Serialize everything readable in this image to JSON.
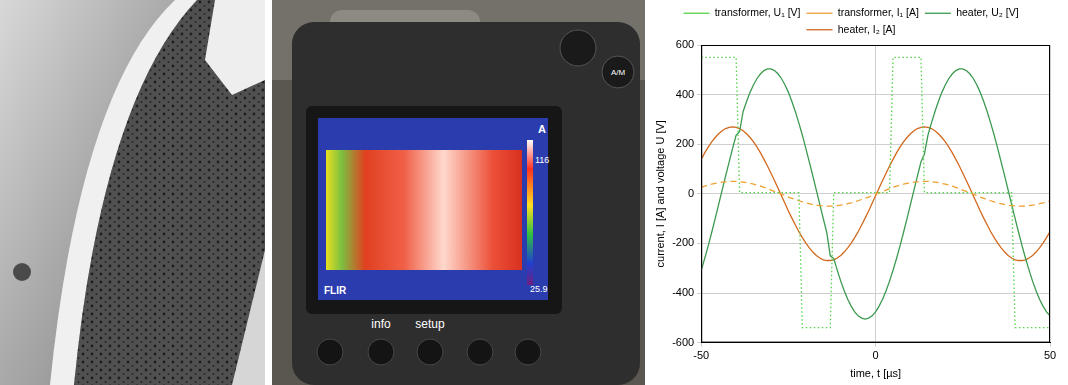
{
  "chart_data": {
    "type": "line",
    "xlabel": "time, t [µs]",
    "ylabel": "current, I [A] and voltage U [V]",
    "x": [
      -50,
      -49,
      -48,
      -47,
      -46,
      -45,
      -44,
      -43,
      -42,
      -41,
      -40,
      -39,
      -38,
      -37,
      -36,
      -35,
      -34,
      -33,
      -32,
      -31,
      -30,
      -29,
      -28,
      -27,
      -26,
      -25,
      -24,
      -23,
      -22,
      -21,
      -20,
      -19,
      -18,
      -17,
      -16,
      -15,
      -14,
      -13,
      -12,
      -11,
      -10,
      -9,
      -8,
      -7,
      -6,
      -5,
      -4,
      -3,
      -2,
      -1,
      0,
      1,
      2,
      3,
      4,
      5,
      6,
      7,
      8,
      9,
      10,
      11,
      12,
      13,
      14,
      15,
      16,
      17,
      18,
      19,
      20,
      21,
      22,
      23,
      24,
      25,
      26,
      27,
      28,
      29,
      30,
      31,
      32,
      33,
      34,
      35,
      36,
      37,
      38,
      39,
      40,
      41,
      42,
      43,
      44,
      45,
      46,
      47,
      48,
      49,
      50
    ],
    "xlim": [
      -50,
      50
    ],
    "xticks": [
      -50,
      0,
      50
    ],
    "ylim": [
      -600,
      600
    ],
    "yticks": [
      -600,
      -400,
      -200,
      0,
      200,
      400,
      600
    ],
    "grid": true,
    "legend": "top",
    "series": [
      {
        "name": "transformer, U₁ [V]",
        "color": "#55d24a",
        "line_style": "dotted",
        "values": [
          550,
          550,
          550,
          550,
          550,
          550,
          550,
          550,
          550,
          550,
          550,
          5,
          5,
          5,
          5,
          5,
          5,
          5,
          5,
          5,
          5,
          5,
          5,
          5,
          5,
          5,
          5,
          5,
          5,
          -540,
          -540,
          -540,
          -540,
          -540,
          -540,
          -540,
          -540,
          -540,
          5,
          5,
          5,
          5,
          5,
          5,
          5,
          5,
          5,
          5,
          5,
          5,
          5,
          5,
          5,
          5,
          5,
          550,
          550,
          550,
          550,
          550,
          550,
          550,
          550,
          550,
          5,
          5,
          5,
          5,
          5,
          5,
          5,
          5,
          5,
          5,
          5,
          5,
          5,
          5,
          5,
          5,
          5,
          5,
          5,
          5,
          5,
          5,
          5,
          5,
          5,
          5,
          -540,
          -540,
          -540,
          -540,
          -540,
          -540,
          -540,
          -540,
          -540,
          -540,
          -540
        ]
      },
      {
        "name": "transformer, I₁ [A]",
        "color": "#f0a030",
        "line_style": "dashed",
        "values": [
          26,
          31,
          35,
          39,
          42,
          45,
          47,
          49,
          50,
          50,
          50,
          49,
          47,
          45,
          42,
          39,
          35,
          31,
          26,
          21,
          15,
          10,
          4,
          -1,
          -7,
          -13,
          -18,
          -23,
          -28,
          -33,
          -37,
          -40,
          -44,
          -46,
          -48,
          -49,
          -50,
          -50,
          -49,
          -48,
          -46,
          -44,
          -40,
          -37,
          -33,
          -28,
          -23,
          -18,
          -13,
          -7,
          -1,
          4,
          10,
          15,
          21,
          26,
          31,
          35,
          39,
          42,
          45,
          47,
          49,
          50,
          50,
          50,
          49,
          47,
          45,
          42,
          39,
          35,
          31,
          26,
          21,
          15,
          10,
          4,
          -1,
          -7,
          -13,
          -18,
          -23,
          -28,
          -33,
          -37,
          -40,
          -44,
          -46,
          -48,
          -49,
          -50,
          -50,
          -49,
          -48,
          -46,
          -44,
          -40,
          -37,
          -33,
          -28
        ]
      },
      {
        "name": "heater, U₂ [V]",
        "color": "#3c9a50",
        "line_style": "solid",
        "values": [
          -308,
          -261,
          -210,
          -156,
          -100,
          -43,
          15,
          72,
          128,
          183,
          236,
          250,
          331,
          372,
          409,
          440,
          465,
          484,
          497,
          504,
          504,
          497,
          484,
          465,
          440,
          409,
          372,
          331,
          285,
          236,
          183,
          128,
          72,
          15,
          -43,
          -100,
          -156,
          -250,
          -261,
          -308,
          -352,
          -391,
          -425,
          -453,
          -476,
          -492,
          -501,
          -505,
          -501,
          -492,
          -476,
          -453,
          -425,
          -391,
          -352,
          -308,
          -261,
          -210,
          -156,
          -100,
          -43,
          15,
          72,
          128,
          160,
          236,
          285,
          331,
          372,
          409,
          440,
          465,
          484,
          497,
          504,
          504,
          497,
          484,
          465,
          440,
          409,
          372,
          331,
          285,
          236,
          183,
          128,
          72,
          15,
          -43,
          -100,
          -156,
          -210,
          -261,
          -308,
          -352,
          -391,
          -425,
          -453,
          -476,
          -492
        ]
      },
      {
        "name": "heater, I₂ [A]",
        "color": "#d2691e",
        "line_style": "solid",
        "values": [
          139,
          165,
          188,
          209,
          227,
          242,
          254,
          263,
          268,
          270,
          268,
          263,
          254,
          242,
          227,
          209,
          188,
          165,
          139,
          112,
          83,
          54,
          23,
          -8,
          -38,
          -69,
          -98,
          -126,
          -153,
          -177,
          -199,
          -218,
          -235,
          -249,
          -259,
          -266,
          -269,
          -269,
          -266,
          -259,
          -249,
          -235,
          -218,
          -199,
          -177,
          -153,
          -126,
          -98,
          -69,
          -38,
          -8,
          23,
          54,
          83,
          112,
          139,
          165,
          188,
          209,
          227,
          242,
          254,
          263,
          268,
          270,
          268,
          263,
          254,
          242,
          227,
          209,
          188,
          165,
          139,
          112,
          83,
          54,
          23,
          -8,
          -38,
          -69,
          -98,
          -126,
          -153,
          -177,
          -199,
          -218,
          -235,
          -249,
          -259,
          -266,
          -269,
          -269,
          -266,
          -259,
          -249,
          -235,
          -218,
          -199,
          -177,
          -153
        ]
      }
    ]
  },
  "photos": {
    "camera": {
      "screen_mode": "A",
      "scale_max": 116,
      "scale_min": 25.9,
      "brand": "FLIR",
      "buttons": [
        "info",
        "setup"
      ],
      "dial": "A/M"
    }
  }
}
